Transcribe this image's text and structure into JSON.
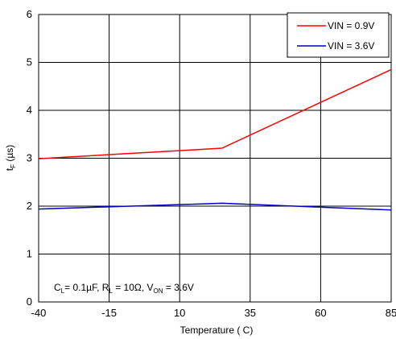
{
  "chart_data": {
    "type": "line",
    "xlabel": "Temperature ( C)",
    "ylabel_main": "t",
    "ylabel_sub": "F",
    "ylabel_unit": " (µs)",
    "x_ticks": [
      -40,
      -15,
      10,
      35,
      60,
      85
    ],
    "y_ticks": [
      0,
      1,
      2,
      3,
      4,
      5,
      6
    ],
    "xlim": [
      -40,
      85
    ],
    "ylim": [
      0,
      6
    ],
    "grid": true,
    "legend_position": "top-right",
    "series": [
      {
        "name": "VIN = 0.9V",
        "color": "#ff0000",
        "x": [
          -40,
          25,
          85
        ],
        "y": [
          2.99,
          3.21,
          4.85
        ]
      },
      {
        "name": "VIN = 3.6V",
        "color": "#0000c0",
        "x": [
          -40,
          25,
          85
        ],
        "y": [
          1.94,
          2.06,
          1.92
        ]
      }
    ],
    "annotation": {
      "p1": "C",
      "p1_sub": "L",
      "p2": "= 0.1µF, R",
      "p2_sub": "L",
      "p3": " = 10Ω, V",
      "p3_sub": "ON",
      "p4": " = 3.6V"
    }
  }
}
